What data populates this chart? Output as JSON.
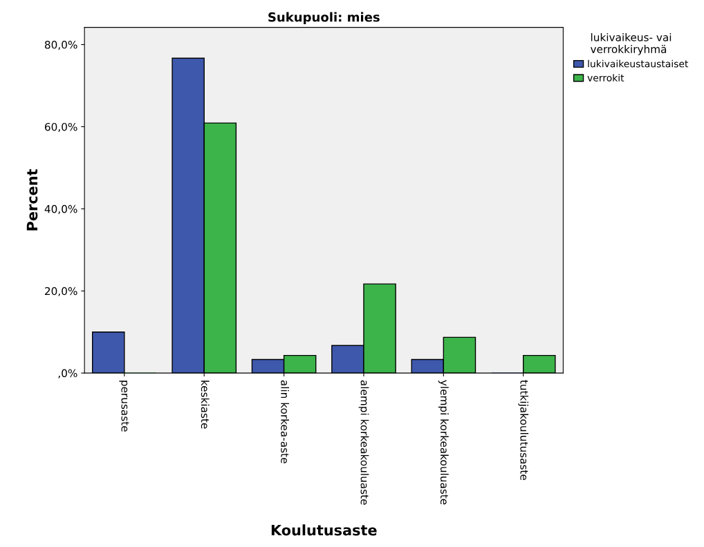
{
  "chart_data": {
    "type": "bar",
    "title": "Sukupuoli: mies",
    "xlabel": "Koulutusaste",
    "ylabel": "Percent",
    "legend_title": "lukivaikeus- vai\nverrokkiryhmä",
    "categories": [
      "perusaste",
      "keskiaste",
      "alin korkea-aste",
      "alempi korkeakouluaste",
      "ylempi korkeakouluaste",
      "tutkijakoulutusaste"
    ],
    "series": [
      {
        "name": "lukivaikeustaustaiset",
        "color": "#3e58ac",
        "values": [
          10.0,
          76.7,
          3.3,
          6.7,
          3.3,
          0
        ]
      },
      {
        "name": "verrokit",
        "color": "#3cb44a",
        "values": [
          0,
          60.9,
          4.3,
          21.7,
          8.7,
          4.3
        ]
      }
    ],
    "ylim": [
      0,
      84.2
    ],
    "yticks": [
      {
        "value": 0,
        "label": ",0%"
      },
      {
        "value": 20,
        "label": "20,0%"
      },
      {
        "value": 40,
        "label": "40,0%"
      },
      {
        "value": 60,
        "label": "60,0%"
      },
      {
        "value": 80,
        "label": "80,0%"
      }
    ],
    "grid": false,
    "legend": "top right"
  }
}
